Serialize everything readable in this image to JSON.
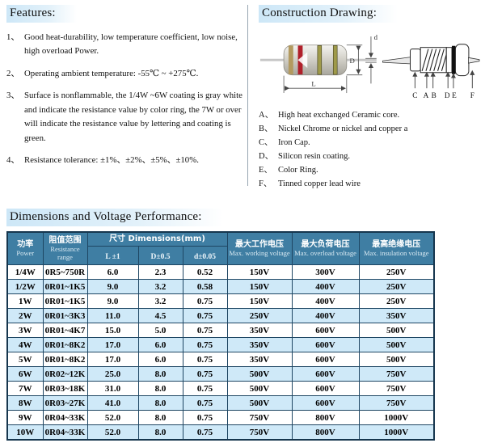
{
  "features": {
    "heading": "Features:",
    "items": [
      {
        "num": "1、",
        "text": "Good heat-durability, low temperature coefficient, low noise, high overload Power."
      },
      {
        "num": "2、",
        "text": "Operating ambient temperature:  -55℃ ~ +275℃."
      },
      {
        "num": "3、",
        "text": "Surface is nonflammable, the 1/4W ~6W coating is gray white and indicate the resistance value by color ring, the 7W or over will indicate the resistance value by lettering and coating is green."
      },
      {
        "num": "4、",
        "text": "Resistance tolerance: ±1%、±2%、±5%、±10%."
      }
    ]
  },
  "construction": {
    "heading": "Construction Drawing:",
    "dims": [
      "L",
      "D",
      "d"
    ],
    "part_letters": [
      "C",
      "A",
      "B",
      "D",
      "E",
      "F"
    ],
    "legend": [
      {
        "letter": "A、",
        "text": "High heat exchanged Ceramic core."
      },
      {
        "letter": "B、",
        "text": "Nickel Chrome or nickel and copper a"
      },
      {
        "letter": "C、",
        "text": "Iron Cap."
      },
      {
        "letter": "D、",
        "text": "Silicon resin coating."
      },
      {
        "letter": "E、",
        "text": "Color Ring."
      },
      {
        "letter": "F、",
        "text": "Tinned copper lead wire"
      }
    ]
  },
  "table": {
    "heading": "Dimensions and Voltage Performance:",
    "header": {
      "power_zh": "功率",
      "power_en": "Power",
      "range_zh": "阻值范围",
      "range_en": "Resistance range",
      "dim_combined": "尺寸 Dimensions(mm)",
      "sub": [
        "L ±1",
        "D±0.5",
        "d±0.05"
      ],
      "working_zh": "最大工作电压",
      "working_en": "Max. working voltage",
      "overload_zh": "最大负荷电压",
      "overload_en": "Max. overload voltage",
      "insulation_zh": "最高绝缘电压",
      "insulation_en": "Max. insulation voltage"
    },
    "rows": [
      [
        "1/4W",
        "0R5~750R",
        "6.0",
        "2.3",
        "0.52",
        "150V",
        "300V",
        "250V"
      ],
      [
        "1/2W",
        "0R01~1K5",
        "9.0",
        "3.2",
        "0.58",
        "150V",
        "400V",
        "250V"
      ],
      [
        "1W",
        "0R01~1K5",
        "9.0",
        "3.2",
        "0.75",
        "150V",
        "400V",
        "250V"
      ],
      [
        "2W",
        "0R01~3K3",
        "11.0",
        "4.5",
        "0.75",
        "250V",
        "400V",
        "350V"
      ],
      [
        "3W",
        "0R01~4K7",
        "15.0",
        "5.0",
        "0.75",
        "350V",
        "600V",
        "500V"
      ],
      [
        "4W",
        "0R01~8K2",
        "17.0",
        "6.0",
        "0.75",
        "350V",
        "600V",
        "500V"
      ],
      [
        "5W",
        "0R01~8K2",
        "17.0",
        "6.0",
        "0.75",
        "350V",
        "600V",
        "500V"
      ],
      [
        "6W",
        "0R02~12K",
        "25.0",
        "8.0",
        "0.75",
        "500V",
        "600V",
        "750V"
      ],
      [
        "7W",
        "0R03~18K",
        "31.0",
        "8.0",
        "0.75",
        "500V",
        "600V",
        "750V"
      ],
      [
        "8W",
        "0R03~27K",
        "41.0",
        "8.0",
        "0.75",
        "500V",
        "600V",
        "750V"
      ],
      [
        "9W",
        "0R04~33K",
        "52.0",
        "8.0",
        "0.75",
        "750V",
        "800V",
        "1000V"
      ],
      [
        "10W",
        "0R04~33K",
        "52.0",
        "8.0",
        "0.75",
        "750V",
        "800V",
        "1000V"
      ]
    ]
  },
  "colors": {
    "header_bg": "#3f7ea3",
    "row_alt": "#cfe9f8",
    "heading_highlight": "#cde7f7",
    "table_border": "#1e4663",
    "band_red": "#b01f2a",
    "band_tan": "#b39a5f",
    "band_olive": "#9f9a4a"
  }
}
